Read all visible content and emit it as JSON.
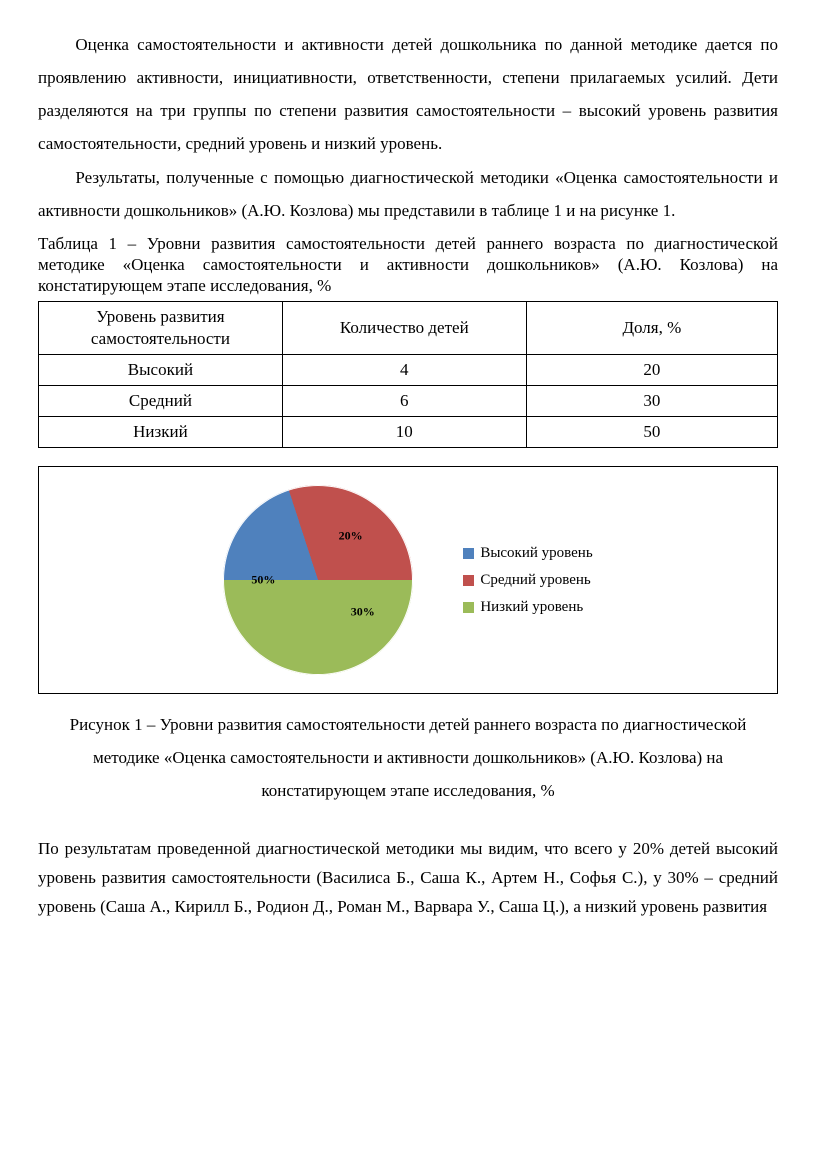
{
  "paragraphs": {
    "p1": "Оценка самостоятельности и активности детей дошкольника по данной методике дается по проявлению активности, инициативности, ответственности, степени прилагаемых усилий. Дети разделяются на три группы по степени развития самостоятельности – высокий уровень развития самостоятельности, средний уровень и низкий уровень.",
    "p2": "Результаты, полученные с помощью диагностической методики «Оценка самостоятельности и активности дошкольников» (А.Ю. Козлова) мы представили в таблице 1 и на рисунке 1."
  },
  "table": {
    "caption": "Таблица 1 – Уровни развития самостоятельности детей раннего возраста по диагностической методике «Оценка самостоятельности и активности дошкольников» (А.Ю. Козлова) на констатирующем этапе исследования, %",
    "headers": [
      "Уровень  развития самостоятельности",
      "Количество детей",
      "Доля, %"
    ],
    "rows": [
      [
        "Высокий",
        "4",
        "20"
      ],
      [
        "Средний",
        "6",
        "30"
      ],
      [
        "Низкий",
        "10",
        "50"
      ]
    ],
    "col_widths": [
      "33%",
      "33%",
      "34%"
    ]
  },
  "chart": {
    "type": "pie",
    "slices": [
      {
        "label": "Высокий уровень",
        "value": 20,
        "text": "20%",
        "color": "#4f81bd"
      },
      {
        "label": "Средний уровень",
        "value": 30,
        "text": "30%",
        "color": "#c0504d"
      },
      {
        "label": "Низкий уровень",
        "value": 50,
        "text": "50%",
        "color": "#9bbb59"
      }
    ],
    "slice_border_color": "#ffffff",
    "label_fontsize": 12,
    "label_color": "#000000",
    "legend_fontsize": 15,
    "box_border_color": "#000000",
    "background_color": "#ffffff"
  },
  "figure_caption": "Рисунок 1 – Уровни развития самостоятельности детей раннего возраста по диагностической методике «Оценка самостоятельности и активности дошкольников» (А.Ю. Козлова) на констатирующем этапе исследования, %",
  "body_after": "По результатам проведенной диагностической методики мы видим, что всего у 20% детей высокий уровень развития самостоятельности (Василиса Б., Саша К., Артем Н., Софья С.), у 30% –  средний уровень (Саша А., Кирилл Б., Родион Д., Роман М., Варвара У., Саша Ц.), а низкий уровень развития"
}
